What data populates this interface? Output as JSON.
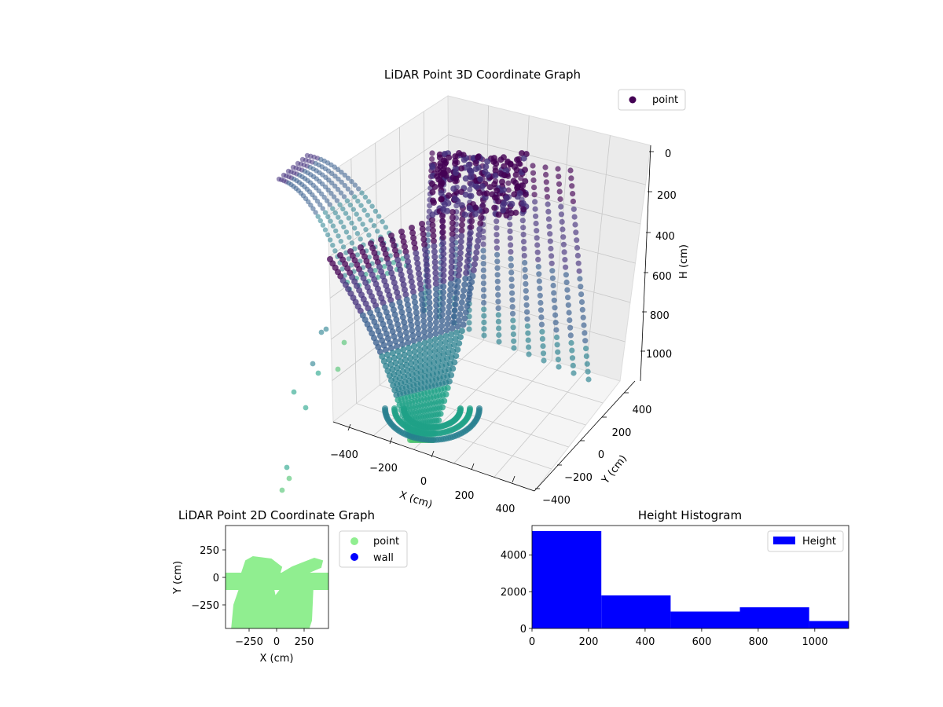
{
  "chart_data": [
    {
      "type": "scatter",
      "title": "LiDAR Point 3D Coordinate Graph",
      "xlabel": "X (cm)",
      "ylabel": "Y (cm)",
      "zlabel": "H (cm)",
      "xticks": [
        "−400",
        "−200",
        "0",
        "200",
        "400"
      ],
      "yticks": [
        "−400",
        "−200",
        "0",
        "200",
        "400"
      ],
      "zticks": [
        "0",
        "200",
        "400",
        "600",
        "800",
        "1000"
      ],
      "xlim": [
        -480,
        480
      ],
      "ylim": [
        -480,
        480
      ],
      "zlim": [
        0,
        1120
      ],
      "z_axis_inverted": true,
      "colormap": "viridis",
      "legend": [
        "point"
      ],
      "legend_position": "top-right",
      "series": [
        {
          "name": "point",
          "color": "#440154"
        }
      ],
      "grid": true
    },
    {
      "type": "scatter",
      "title": "LiDAR Point 2D Coordinate Graph",
      "xlabel": "X (cm)",
      "ylabel": "Y (cm)",
      "xticks": [
        "−250",
        "0",
        "250"
      ],
      "yticks": [
        "250",
        "0",
        "−250"
      ],
      "xlim": [
        -480,
        480
      ],
      "ylim": [
        -480,
        480
      ],
      "legend": [
        "point",
        "wall"
      ],
      "legend_position": "outside-right",
      "series": [
        {
          "name": "point",
          "color": "#90ee90"
        },
        {
          "name": "wall",
          "color": "#0000ff"
        }
      ]
    },
    {
      "type": "bar",
      "title": "Height Histogram",
      "xticks": [
        "0",
        "200",
        "400",
        "600",
        "800",
        "1000"
      ],
      "yticks": [
        "0",
        "2000",
        "4000"
      ],
      "xlim": [
        0,
        1120
      ],
      "ylim": [
        0,
        5600
      ],
      "bin_edges": [
        0,
        245,
        490,
        735,
        980,
        1120
      ],
      "values": [
        5300,
        1800,
        920,
        1150,
        400
      ],
      "color": "#0000ff",
      "legend": [
        "Height"
      ],
      "legend_position": "top-right"
    }
  ]
}
